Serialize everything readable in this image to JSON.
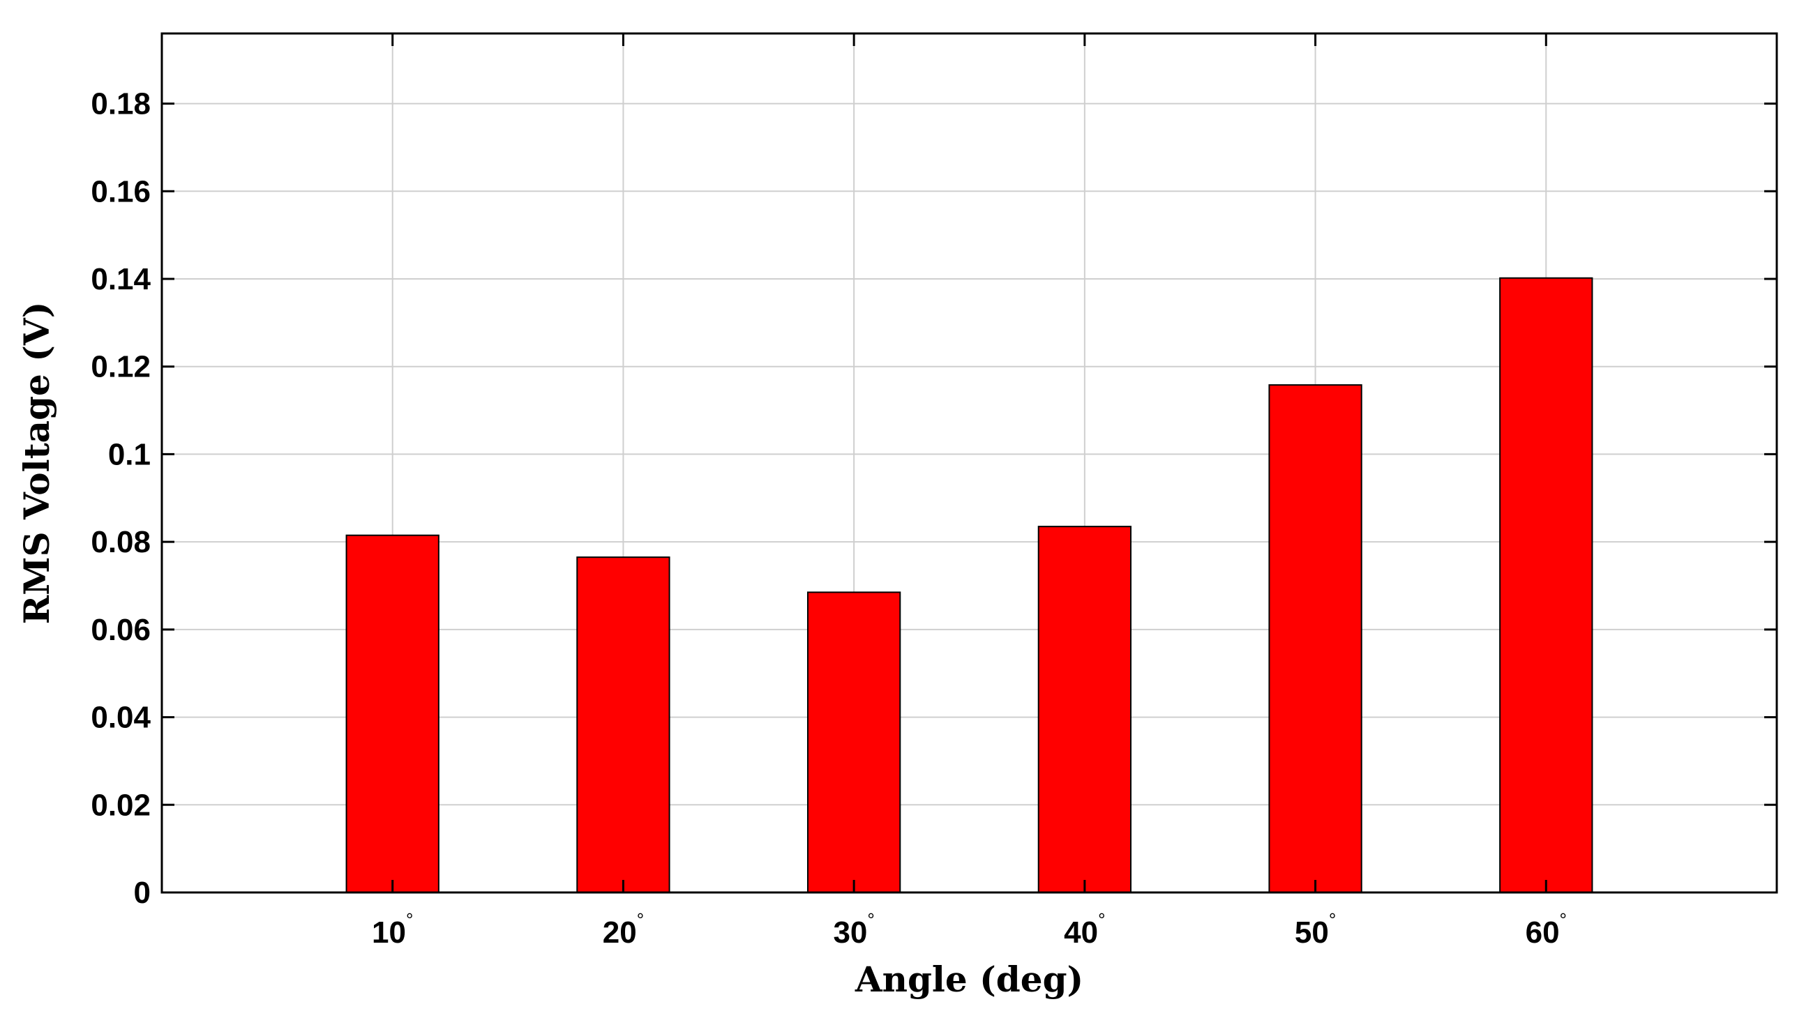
{
  "chart_data": {
    "type": "bar",
    "categories": [
      "10",
      "20",
      "30",
      "40",
      "50",
      "60"
    ],
    "category_suffix": "°",
    "values": [
      0.0815,
      0.0765,
      0.0685,
      0.0835,
      0.1158,
      0.1402
    ],
    "xlabel": "Angle (deg)",
    "ylabel": "RMS Voltage (V)",
    "ylim": [
      0,
      0.196
    ],
    "xlim": [
      0,
      7
    ],
    "yticks": [
      0,
      0.02,
      0.04,
      0.06,
      0.08,
      0.1,
      0.12,
      0.14,
      0.16,
      0.18
    ],
    "ytick_labels": [
      "0",
      "0.02",
      "0.04",
      "0.06",
      "0.08",
      "0.1",
      "0.12",
      "0.14",
      "0.16",
      "0.18"
    ],
    "grid": true,
    "bar_color": "#ff0000",
    "legend": "none"
  }
}
